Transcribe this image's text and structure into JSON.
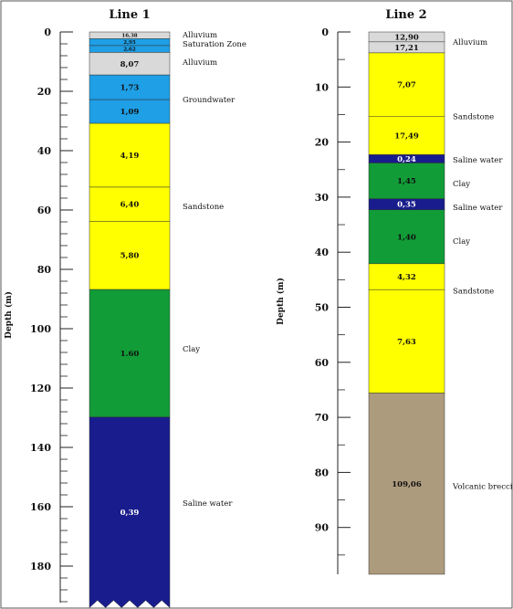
{
  "panels": [
    {
      "title": "Line 1",
      "axis_label": "Depth (m)",
      "ticks": [
        0,
        20,
        40,
        60,
        80,
        100,
        120,
        140,
        160,
        180
      ],
      "max_depth": 194,
      "cut_bottom": true,
      "layers": [
        {
          "top": 0,
          "bottom": 2.3,
          "value": "16,38",
          "color": "#d9d9d9"
        },
        {
          "top": 2.3,
          "bottom": 4.6,
          "value": "2,95",
          "color": "#1e9fe6"
        },
        {
          "top": 4.6,
          "bottom": 6.9,
          "value": "2,62",
          "color": "#1e9fe6"
        },
        {
          "top": 6.9,
          "bottom": 14.5,
          "value": "8,07",
          "color": "#d9d9d9"
        },
        {
          "top": 14.5,
          "bottom": 22.8,
          "value": "1,73",
          "color": "#1e9fe6"
        },
        {
          "top": 22.8,
          "bottom": 30.8,
          "value": "1,09",
          "color": "#1e9fe6"
        },
        {
          "top": 30.8,
          "bottom": 52.3,
          "value": "4,19",
          "color": "#ffff00"
        },
        {
          "top": 52.3,
          "bottom": 63.8,
          "value": "6,40",
          "color": "#ffff00"
        },
        {
          "top": 63.8,
          "bottom": 86.8,
          "value": "5,80",
          "color": "#ffff00"
        },
        {
          "top": 86.8,
          "bottom": 129.8,
          "value": "1.60",
          "color": "#119c37"
        },
        {
          "top": 129.8,
          "bottom": 194,
          "value": "0,39",
          "color": "#191c8c"
        }
      ],
      "labels": [
        {
          "text": "Alluvium",
          "depth": 0.9
        },
        {
          "text": "Saturation Zone",
          "depth": 4.0
        },
        {
          "text": "Alluvium",
          "depth": 10.2
        },
        {
          "text": "Groundwater",
          "depth": 22.8
        },
        {
          "text": "Sandstone",
          "depth": 58.8
        },
        {
          "text": "Clay",
          "depth": 106.8
        },
        {
          "text": "Saline water",
          "depth": 158.8
        }
      ]
    },
    {
      "title": "Line 2",
      "axis_label": "Depth (m)",
      "ticks": [
        0,
        10,
        20,
        30,
        40,
        50,
        60,
        70,
        80,
        90
      ],
      "max_depth": 98.5,
      "cut_bottom": false,
      "layers": [
        {
          "top": 0,
          "bottom": 1.8,
          "value": "12,90",
          "color": "#d9d9d9"
        },
        {
          "top": 1.8,
          "bottom": 3.8,
          "value": "17,21",
          "color": "#d9d9d9"
        },
        {
          "top": 3.8,
          "bottom": 15.3,
          "value": "7,07",
          "color": "#ffff00"
        },
        {
          "top": 15.3,
          "bottom": 22.3,
          "value": "17,49",
          "color": "#ffff00"
        },
        {
          "top": 22.3,
          "bottom": 23.8,
          "value": "0,24",
          "color": "#191c8c"
        },
        {
          "top": 23.8,
          "bottom": 30.3,
          "value": "1,45",
          "color": "#119c37"
        },
        {
          "top": 30.3,
          "bottom": 32.3,
          "value": "0,35",
          "color": "#191c8c"
        },
        {
          "top": 32.3,
          "bottom": 42.1,
          "value": "1,40",
          "color": "#119c37"
        },
        {
          "top": 42.1,
          "bottom": 46.8,
          "value": "4,32",
          "color": "#ffff00"
        },
        {
          "top": 46.8,
          "bottom": 65.6,
          "value": "7,63",
          "color": "#ffff00"
        },
        {
          "top": 65.6,
          "bottom": 98.5,
          "value": "109,06",
          "color": "#ad9b7d"
        }
      ],
      "labels": [
        {
          "text": "Alluvium",
          "depth": 1.8
        },
        {
          "text": "Sandstone",
          "depth": 15.3
        },
        {
          "text": "Saline water",
          "depth": 23.2
        },
        {
          "text": "Clay",
          "depth": 27.5
        },
        {
          "text": "Saline water",
          "depth": 31.8
        },
        {
          "text": "Clay",
          "depth": 38.0
        },
        {
          "text": "Sandstone",
          "depth": 47.0
        },
        {
          "text": "Volcanic breccia",
          "depth": 82.5
        }
      ]
    }
  ]
}
